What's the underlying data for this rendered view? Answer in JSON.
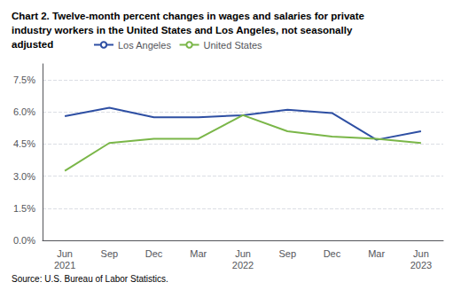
{
  "chart_data": {
    "type": "line",
    "title": "Chart 2. Twelve-month percent changes in wages and salaries for private\nindustry workers in the United States and Los Angeles, not seasonally\nadjusted",
    "source": "Source: U.S. Bureau of Labor Statistics.",
    "categories": [
      "Jun\n2021",
      "Sep",
      "Dec",
      "Mar",
      "Jun\n2022",
      "Sep",
      "Dec",
      "Mar",
      "Jun\n2023"
    ],
    "series": [
      {
        "name": "Los Angeles",
        "color": "#2e4fa3",
        "values": [
          5.8,
          6.2,
          5.75,
          5.75,
          5.85,
          6.1,
          5.95,
          4.7,
          5.1
        ]
      },
      {
        "name": "United States",
        "color": "#7ab648",
        "values": [
          3.25,
          4.55,
          4.75,
          4.75,
          5.85,
          5.1,
          4.85,
          4.75,
          4.55
        ]
      }
    ],
    "ylim": [
      0.0,
      8.25
    ],
    "yticks": [
      {
        "value": 0.0,
        "label": "0.0%"
      },
      {
        "value": 1.5,
        "label": "1.5%"
      },
      {
        "value": 3.0,
        "label": "3.0%"
      },
      {
        "value": 4.5,
        "label": "4.5%"
      },
      {
        "value": 6.0,
        "label": "6.0%"
      },
      {
        "value": 7.5,
        "label": "7.5%"
      }
    ],
    "grid": true,
    "legend": "top"
  }
}
